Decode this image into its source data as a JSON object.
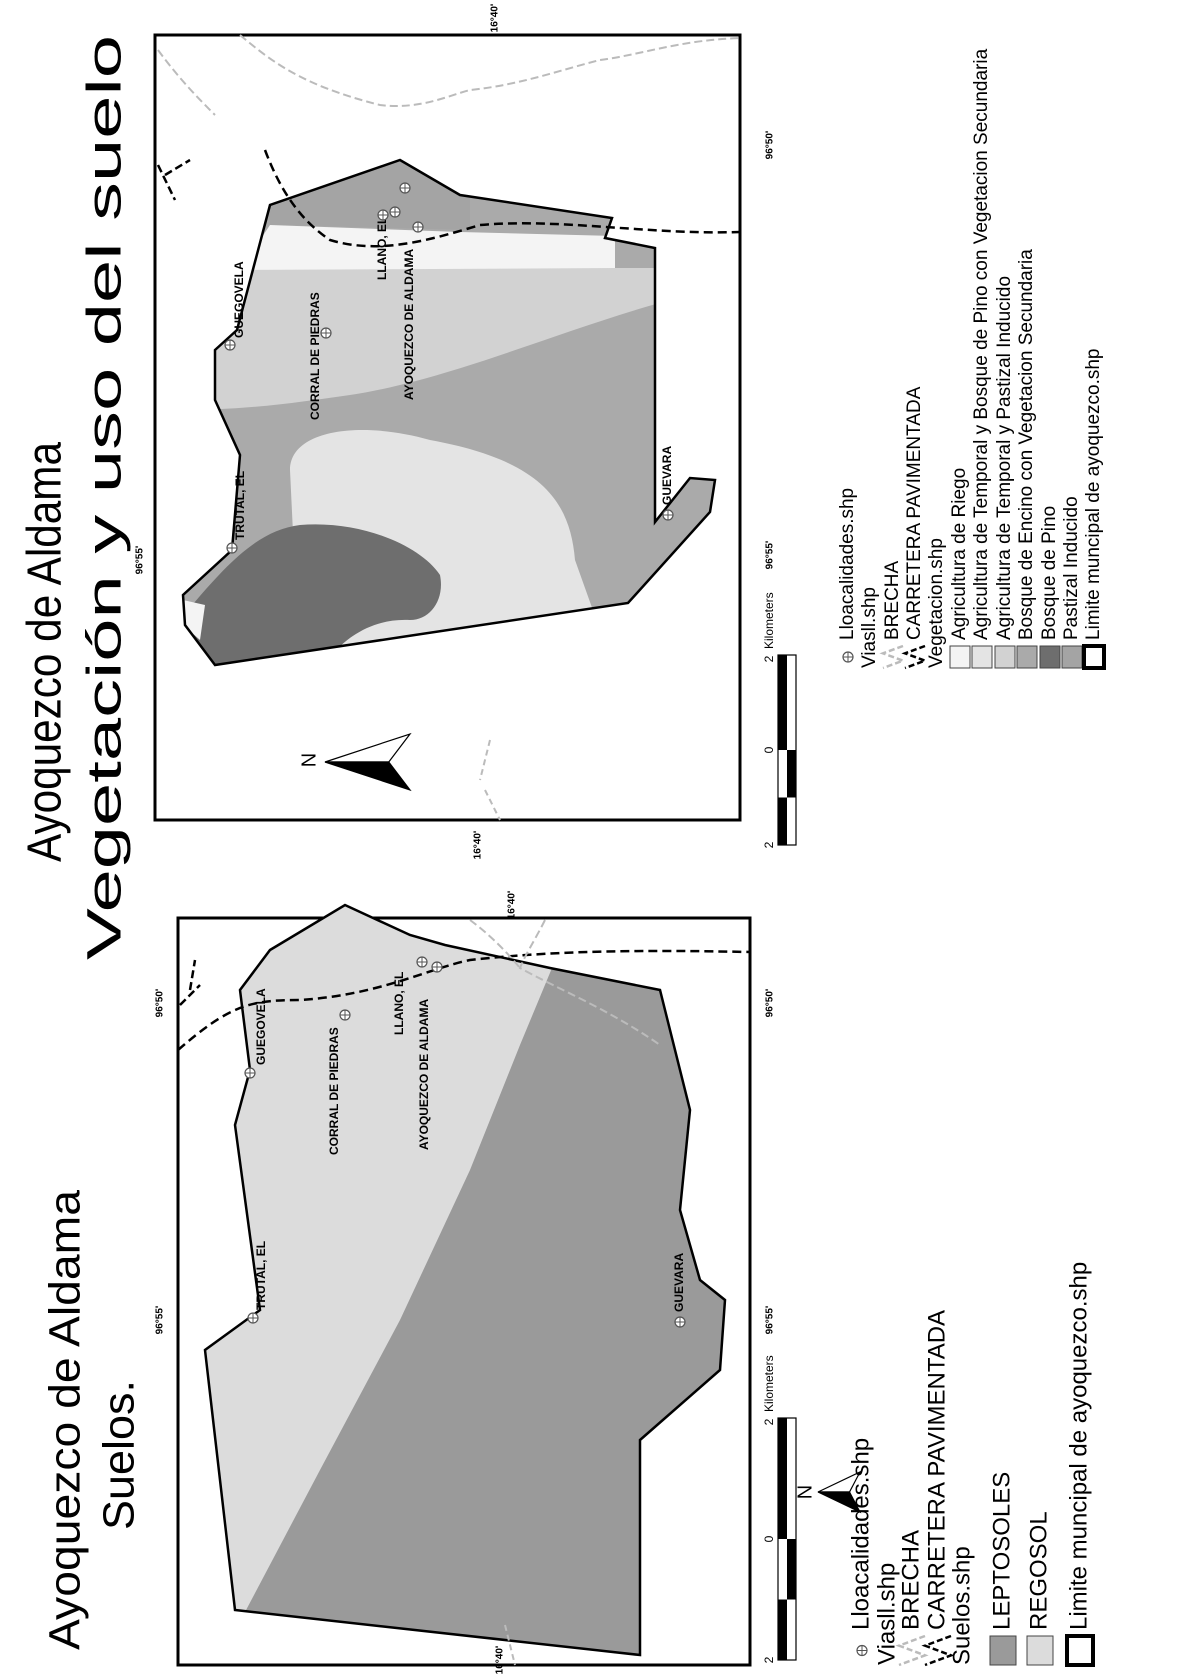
{
  "maps": [
    {
      "title": "Ayoquezco de Aldama",
      "subtitle": "Suelos.",
      "coordinates": [
        "96°55'",
        "96°50'",
        "96°55'",
        "96°50'",
        "16°40'",
        "16°40'"
      ],
      "places": [
        "TRUTAL, EL",
        "GUEGOVELA",
        "CORRAL DE PIEDRAS",
        "LLANO, EL",
        "AYOQUEZCO DE ALDAMA",
        "GUEVARA"
      ],
      "north": "N",
      "scale": {
        "labels": [
          "2",
          "0",
          "2"
        ],
        "unit": "Kilometers"
      },
      "legend": {
        "localities": "Lloacalidades.shp",
        "roads": {
          "layer": "Viasll.shp",
          "items": [
            "BRECHA",
            "CARRETERA PAVIMENTADA"
          ]
        },
        "zones": {
          "layer": "Suelos.shp",
          "items": [
            "LEPTOSOLES",
            "REGOSOL"
          ],
          "colors": [
            "#9a9a9a",
            "#dcdcdc"
          ]
        },
        "boundary": "Limite muncipal de ayoquezco.shp"
      }
    },
    {
      "title": "Ayoquezco de Aldama",
      "subtitle": "Vegetación y uso del suelo",
      "coordinates": [
        "96°55'",
        "96°55'",
        "96°50'",
        "16°40'",
        "16°40'"
      ],
      "places": [
        "TRUTAL, EL",
        "GUEGOVELA",
        "CORRAL DE PIEDRAS",
        "LLANO, EL",
        "AYOQUEZCO DE ALDAMA",
        "GUEVARA"
      ],
      "north": "N",
      "scale": {
        "labels": [
          "2",
          "0",
          "2"
        ],
        "unit": "Kilometers"
      },
      "legend": {
        "localities": "Lloacalidades.shp",
        "roads": {
          "layer": "Viasll.shp",
          "items": [
            "BRECHA",
            "CARRETERA PAVIMENTADA"
          ]
        },
        "zones": {
          "layer": "Vegetacion.shp",
          "items": [
            "Agricultura de Riego",
            "Agricultura de Temporal y Bosque de Pino con Vegetacion Secundaria",
            "Agricultura de Temporal y Pastizal Inducido",
            "Bosque de Encino con Vegetacion Secundaria",
            "Bosque de Pino",
            "Pastizal Inducido"
          ],
          "colors": [
            "#f4f4f4",
            "#e4e4e4",
            "#d2d2d2",
            "#aaaaaa",
            "#6e6e6e",
            "#a4a4a4"
          ]
        },
        "boundary": "Limite muncipal de ayoquezco.shp"
      }
    }
  ]
}
